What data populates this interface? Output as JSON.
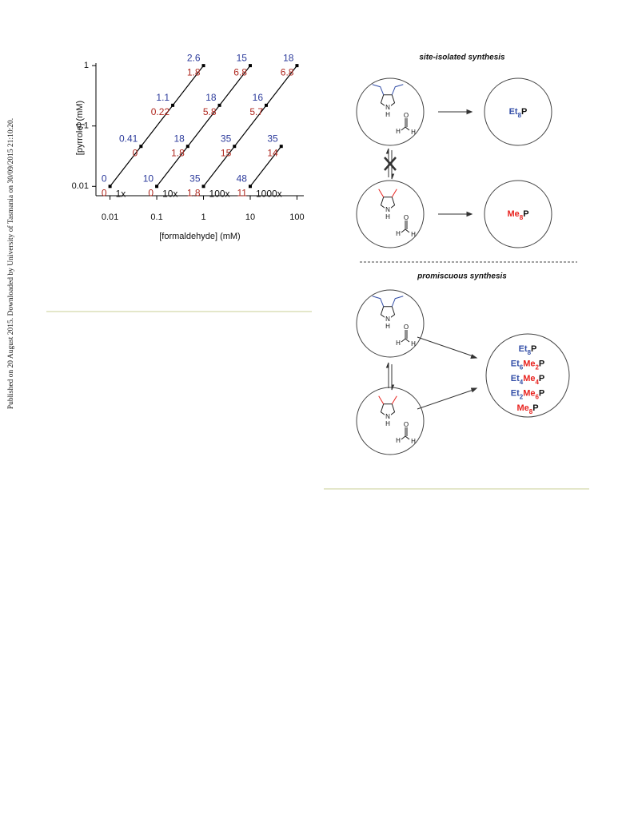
{
  "side_note": "Published on 20 August 2015. Downloaded by University of Tasmania on 30/09/2015 21:10:20.",
  "chart_data": {
    "type": "line",
    "x_label": "[formaldehyde] (mM)",
    "y_label": "[pyrrole] (mM)",
    "xlog": true,
    "ylog": true,
    "xlim": [
      0.005,
      140
    ],
    "ylim": [
      0.007,
      1.1
    ],
    "xticks": [
      0.01,
      0.1,
      1,
      10,
      100
    ],
    "yticks": [
      0.01,
      0.1,
      1
    ],
    "color": "#000000",
    "top_label_color": "#2b3a9b",
    "bottom_label_color": "#b0281f",
    "series": [
      {
        "name": "1x",
        "x": [
          0.01,
          0.046,
          0.22,
          1
        ],
        "values": [
          0.01,
          0.046,
          0.22,
          1
        ],
        "top_labels": [
          0,
          0.41,
          1.1,
          2.6
        ],
        "bottom_labels": [
          0,
          0,
          0.22,
          1.8
        ]
      },
      {
        "name": "10x",
        "x": [
          0.1,
          0.46,
          2.2,
          10
        ],
        "values": [
          0.01,
          0.046,
          0.22,
          1
        ],
        "top_labels": [
          10,
          18,
          18,
          15
        ],
        "bottom_labels": [
          0,
          1.8,
          5.8,
          6.8
        ]
      },
      {
        "name": "100x",
        "x": [
          1,
          4.6,
          22,
          100
        ],
        "values": [
          0.01,
          0.046,
          0.22,
          1
        ],
        "top_labels": [
          35,
          35,
          16,
          18
        ],
        "bottom_labels": [
          1.8,
          15,
          5.7,
          6.8
        ]
      },
      {
        "name": "1000x",
        "x": [
          10,
          46
        ],
        "values": [
          0.01,
          0.046
        ],
        "top_labels": [
          48,
          35
        ],
        "bottom_labels": [
          11,
          14
        ]
      }
    ]
  },
  "diagram": {
    "site_isolated_title": "site-isolated synthesis",
    "promiscuous_title": "promiscuous synthesis",
    "atoms": {
      "nitrogen": "N",
      "hydrogen": "H",
      "oxygen": "O"
    },
    "group_colors": {
      "Et": "#3550a8",
      "Me": "#e8231f",
      "P": "#111111"
    },
    "site_isolated_products": [
      [
        [
          "Et",
          8
        ],
        [
          "P"
        ]
      ],
      [
        [
          "Me",
          8
        ],
        [
          "P"
        ]
      ]
    ],
    "promiscuous_products": [
      [
        [
          "Et",
          8
        ],
        [
          "P"
        ]
      ],
      [
        [
          "Et",
          6
        ],
        [
          "Me",
          2
        ],
        [
          "P"
        ]
      ],
      [
        [
          "Et",
          4
        ],
        [
          "Me",
          4
        ],
        [
          "P"
        ]
      ],
      [
        [
          "Et",
          2
        ],
        [
          "Me",
          6
        ],
        [
          "P"
        ]
      ],
      [
        [
          "Me",
          8
        ],
        [
          "P"
        ]
      ]
    ]
  }
}
